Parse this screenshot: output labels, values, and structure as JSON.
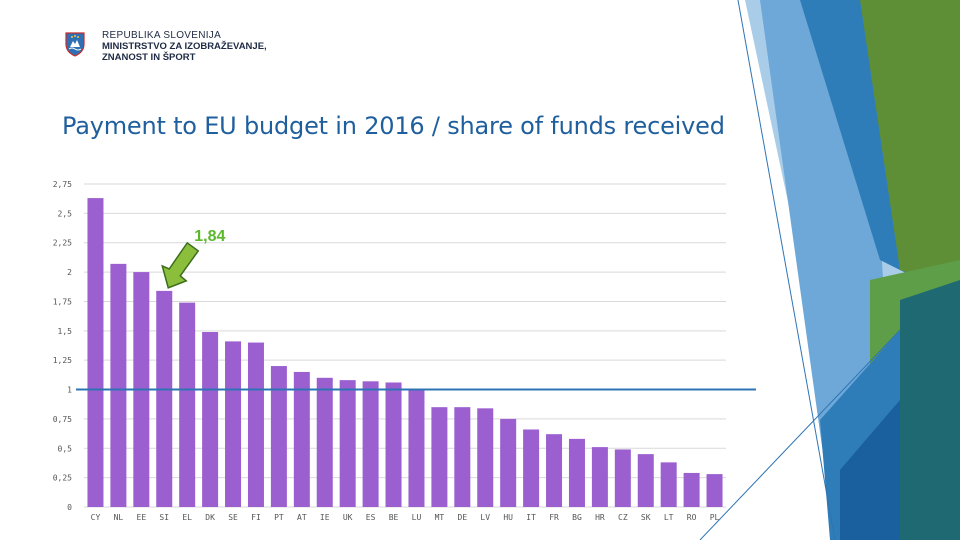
{
  "header": {
    "line1": "REPUBLIKA SLOVENIJA",
    "line2": "MINISTRSTVO ZA IZOBRAŽEVANJE,",
    "line3": "ZNANOST IN ŠPORT"
  },
  "colors": {
    "bar": "#9b5fcf",
    "reference_line": "#2e74b5",
    "callout_text": "#5cb82a",
    "arrow_fill": "#8bbf3b",
    "arrow_stroke": "#3d6e1e",
    "title": "#1f5f9e"
  },
  "icons": [
    "coat-of-arms-icon",
    "callout-arrow-icon"
  ],
  "chart_data": {
    "type": "bar",
    "title": "Payment to EU budget in 2016 / share of funds received",
    "xlabel": "",
    "ylabel": "",
    "categories": [
      "CY",
      "NL",
      "EE",
      "SI",
      "EL",
      "DK",
      "SE",
      "FI",
      "PT",
      "AT",
      "IE",
      "UK",
      "ES",
      "BE",
      "LU",
      "MT",
      "DE",
      "LV",
      "HU",
      "IT",
      "FR",
      "BG",
      "HR",
      "CZ",
      "SK",
      "LT",
      "RO",
      "PL"
    ],
    "values": [
      2.63,
      2.07,
      2.0,
      1.84,
      1.74,
      1.49,
      1.41,
      1.4,
      1.2,
      1.15,
      1.1,
      1.08,
      1.07,
      1.06,
      1.0,
      0.85,
      0.85,
      0.84,
      0.75,
      0.66,
      0.62,
      0.58,
      0.51,
      0.49,
      0.45,
      0.38,
      0.29,
      0.28
    ],
    "ylim": [
      0,
      2.75
    ],
    "yticks": [
      0,
      0.25,
      0.5,
      0.75,
      1,
      1.25,
      1.5,
      1.75,
      2,
      2.25,
      2.5,
      2.75
    ],
    "ytick_labels": [
      "0",
      "0,25",
      "0,5",
      "0,75",
      "1",
      "1,25",
      "1,5",
      "1,75",
      "2",
      "2,25",
      "2,5",
      "2,75"
    ],
    "grid": true,
    "reference_line": 1,
    "annotation": {
      "text": "1,84",
      "category": "SI"
    }
  }
}
